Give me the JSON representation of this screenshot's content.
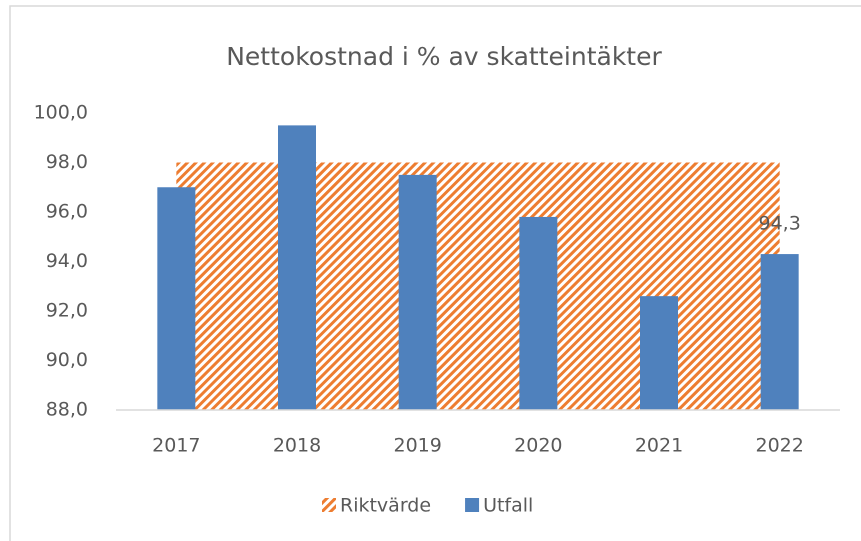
{
  "chart_data": {
    "type": "bar",
    "title": "Nettokostnad i % av skatteintäkter",
    "categories": [
      "2017",
      "2018",
      "2019",
      "2020",
      "2021",
      "2022"
    ],
    "series": [
      {
        "name": "Riktvärde",
        "type": "area",
        "color": "#ED7D31",
        "fill_pattern": "diagonal-hatch",
        "values": [
          98,
          98,
          98,
          98,
          98,
          98
        ]
      },
      {
        "name": "Utfall",
        "type": "bar",
        "color": "#4F81BD",
        "values": [
          97.0,
          99.5,
          97.5,
          95.8,
          92.6,
          94.3
        ],
        "value_labels": [
          null,
          null,
          null,
          null,
          null,
          "94,3"
        ]
      }
    ],
    "ylim": [
      88,
      100
    ],
    "yticks": [
      {
        "value": 88,
        "label": "88,0"
      },
      {
        "value": 90,
        "label": "90,0"
      },
      {
        "value": 92,
        "label": "92,0"
      },
      {
        "value": 94,
        "label": "94,0"
      },
      {
        "value": 96,
        "label": "96,0"
      },
      {
        "value": 98,
        "label": "98,0"
      },
      {
        "value": 100,
        "label": "100,0"
      }
    ],
    "grid": false,
    "legend": "bottom"
  }
}
